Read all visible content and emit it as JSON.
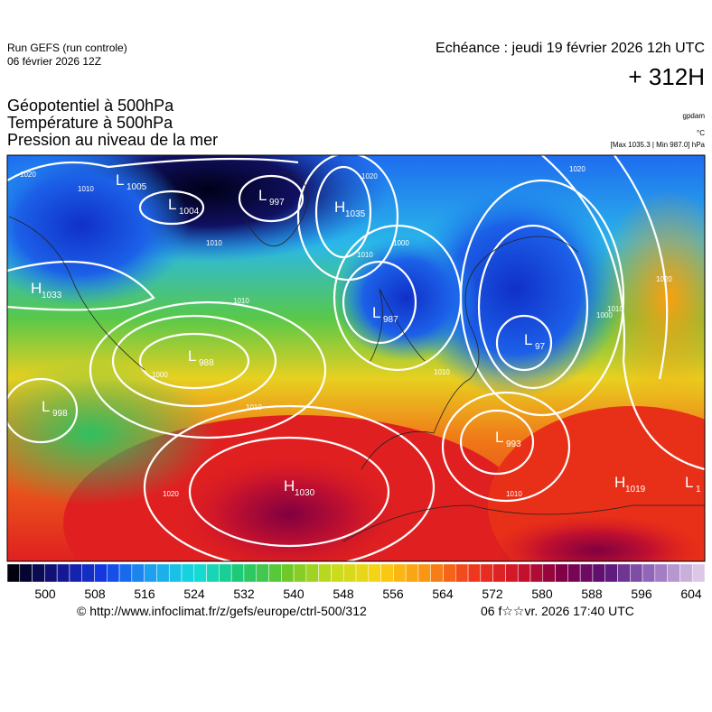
{
  "header": {
    "run": "Run GEFS (run controle)",
    "run_date": "06 février 2026 12Z",
    "valid": "Echéance : jeudi 19 février 2026 12h UTC",
    "lead": "+ 312H"
  },
  "titles": [
    "Géopotentiel à 500hPa",
    "Température à 500hPa",
    "Pression au niveau de la mer"
  ],
  "units": {
    "geopotential": "gpdam",
    "temperature": "°C",
    "pressure": "[Max 1035.3 | Min 987.0] hPa"
  },
  "pressure_centers": [
    {
      "kind": "L",
      "value": "1005"
    },
    {
      "kind": "L",
      "value": "1004"
    },
    {
      "kind": "L",
      "value": "997"
    },
    {
      "kind": "H",
      "value": "1035"
    },
    {
      "kind": "H",
      "value": "1033"
    },
    {
      "kind": "L",
      "value": "987"
    },
    {
      "kind": "L",
      "value": "988"
    },
    {
      "kind": "L",
      "value": "97"
    },
    {
      "kind": "L",
      "value": "998"
    },
    {
      "kind": "L",
      "value": "993"
    },
    {
      "kind": "H",
      "value": "1030"
    },
    {
      "kind": "H",
      "value": "1019"
    },
    {
      "kind": "L",
      "value": "1"
    }
  ],
  "isobar_labels": [
    "1020",
    "1010",
    "1010",
    "1010",
    "1020",
    "1010",
    "1000",
    "1010",
    "1000",
    "1000",
    "1010",
    "1020",
    "1010",
    "1020",
    "1010",
    "1020"
  ],
  "colorbar": {
    "ticks": [
      500,
      508,
      516,
      524,
      532,
      540,
      548,
      556,
      564,
      572,
      580,
      588,
      596,
      604
    ]
  },
  "footer": {
    "source": "© http://www.infoclimat.fr/z/gefs/europe/ctrl-500/312",
    "generated": "06 f☆☆vr. 2026 17:40 UTC"
  }
}
